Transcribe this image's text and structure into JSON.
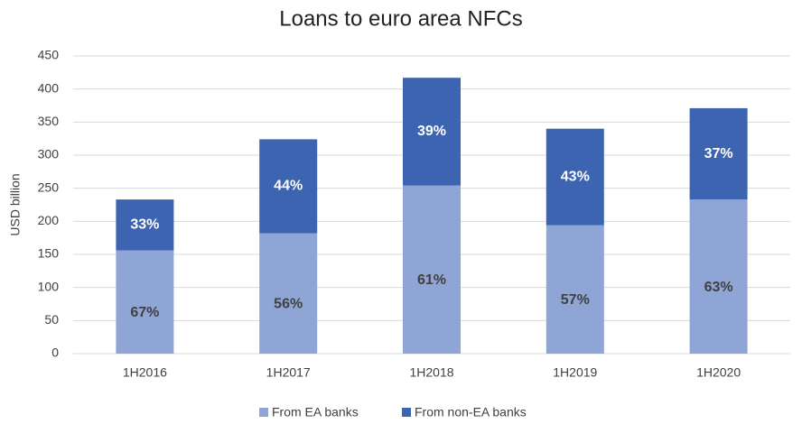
{
  "chart_data": {
    "type": "stacked_bar",
    "title": "Loans to euro area NFCs",
    "y_label": "USD billion",
    "categories": [
      "1H2016",
      "1H2017",
      "1H2018",
      "1H2019",
      "1H2020"
    ],
    "series": [
      {
        "name": "From EA banks",
        "color": "#8fa5d6",
        "label_color": "#404040",
        "values": [
          156,
          182,
          254,
          194,
          233
        ],
        "share_labels": [
          "67%",
          "56%",
          "61%",
          "57%",
          "63%"
        ]
      },
      {
        "name": "From non-EA banks",
        "color": "#3c64b1",
        "label_color": "#ffffff",
        "values": [
          77,
          142,
          163,
          146,
          138
        ],
        "share_labels": [
          "33%",
          "44%",
          "39%",
          "43%",
          "37%"
        ]
      }
    ],
    "ylim": [
      0,
      450
    ],
    "yticks": [
      0,
      50,
      100,
      150,
      200,
      250,
      300,
      350,
      400,
      450
    ],
    "grid": true,
    "legend": "bottom"
  }
}
